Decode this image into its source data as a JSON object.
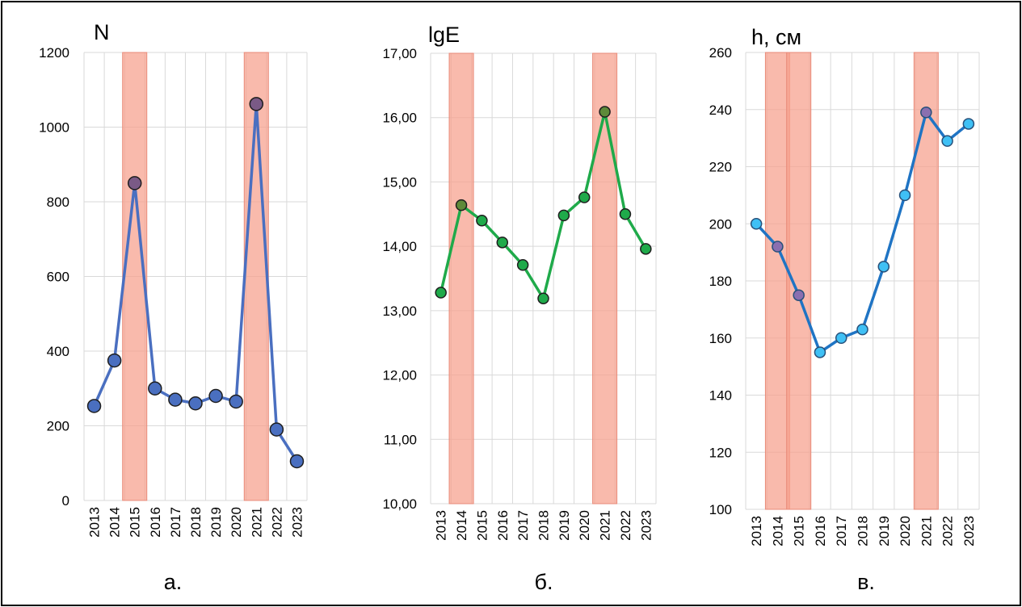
{
  "chart_data": [
    {
      "type": "line",
      "title": "N",
      "panel_label": "а.",
      "categories": [
        "2013",
        "2014",
        "2015",
        "2016",
        "2017",
        "2018",
        "2019",
        "2020",
        "2021",
        "2022",
        "2023"
      ],
      "values": [
        253,
        375,
        850,
        300,
        270,
        260,
        280,
        265,
        1062,
        190,
        105
      ],
      "ylim": [
        0,
        1200
      ],
      "yticks": [
        "0",
        "200",
        "400",
        "600",
        "800",
        "1000",
        "1200"
      ],
      "highlight_years": [
        "2015",
        "2021"
      ],
      "grid": true,
      "colors": {
        "line": "#4a6fc0",
        "marker": "#4a6fc0",
        "marker_highlight": "#7a5a86",
        "band": "#f7a08c"
      }
    },
    {
      "type": "line",
      "title": "lgE",
      "panel_label": "б.",
      "categories": [
        "2013",
        "2014",
        "2015",
        "2016",
        "2017",
        "2018",
        "2019",
        "2020",
        "2021",
        "2022",
        "2023"
      ],
      "values": [
        13.28,
        14.64,
        14.4,
        14.06,
        13.71,
        13.19,
        14.48,
        14.76,
        16.09,
        14.5,
        13.96
      ],
      "ylim": [
        10,
        17
      ],
      "yticks": [
        "10,00",
        "11,00",
        "12,00",
        "13,00",
        "14,00",
        "15,00",
        "16,00",
        "17,00"
      ],
      "highlight_years": [
        "2014",
        "2021"
      ],
      "grid": true,
      "colors": {
        "line": "#1faa4a",
        "marker": "#1faa4a",
        "marker_highlight": "#5e8a3a",
        "band": "#f7a08c"
      }
    },
    {
      "type": "line",
      "title": "h, см",
      "panel_label": "в.",
      "categories": [
        "2013",
        "2014",
        "2015",
        "2016",
        "2017",
        "2018",
        "2019",
        "2020",
        "2021",
        "2022",
        "2023"
      ],
      "values": [
        200,
        192,
        175,
        155,
        160,
        163,
        185,
        210,
        239,
        229,
        235
      ],
      "ylim": [
        100,
        260
      ],
      "yticks": [
        "100",
        "120",
        "140",
        "160",
        "180",
        "200",
        "220",
        "240",
        "260"
      ],
      "highlight_years": [
        "2014",
        "2015",
        "2021"
      ],
      "grid": true,
      "colors": {
        "line": "#1f74c4",
        "marker": "#3fc0f5",
        "marker_highlight": "#8a6fb0",
        "band": "#f7a08c"
      }
    }
  ]
}
